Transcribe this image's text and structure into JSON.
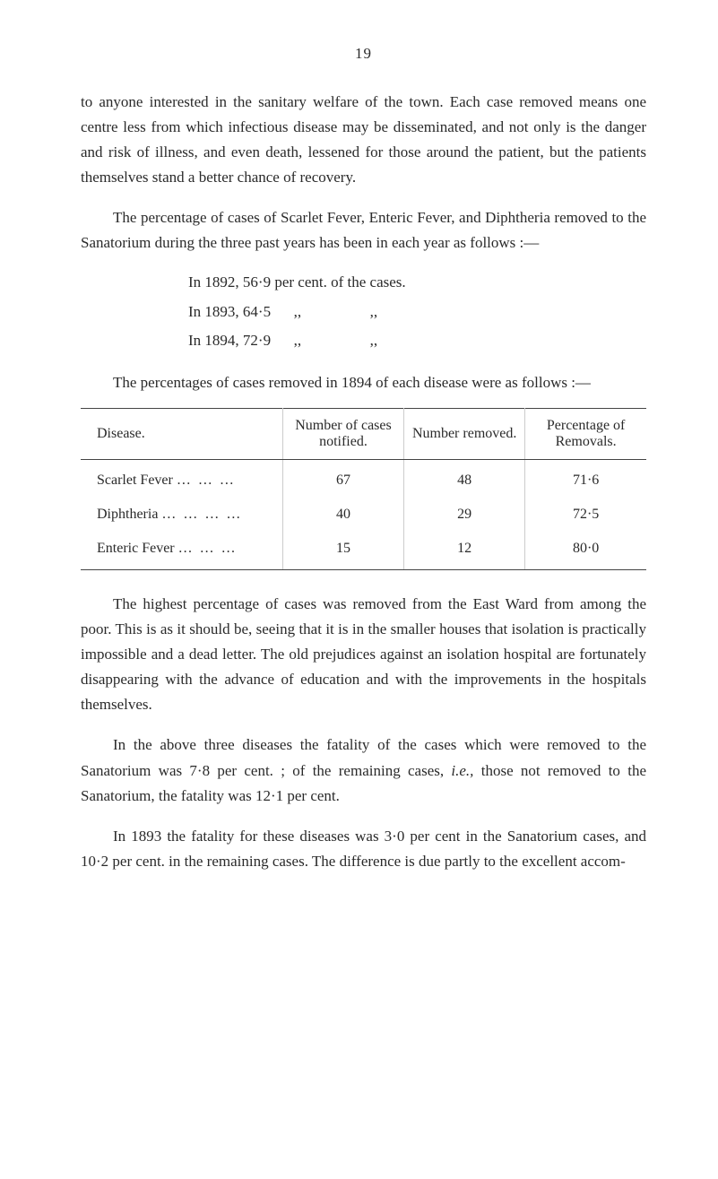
{
  "page_number": "19",
  "paragraphs": {
    "p1": "to anyone interested in the sanitary welfare of the town. Each case removed means one centre less from which infectious disease may be disseminated, and not only is the danger and risk of illness, and even death, lessened for those around the patient, but the patients themselves stand a better chance of recovery.",
    "p2": "The percentage of cases of Scarlet Fever, Enteric Fever, and Diphtheria removed to the Sanatorium during the three past years has been in each year as follows :—",
    "p3": "The percentages of cases removed in 1894 of each disease were as follows :—",
    "p4": "The highest percentage of cases was removed from the East Ward from among the poor. This is as it should be, seeing that it is in the smaller houses that isolation is prac­tically impossible and a dead letter. The old prejudices against an isolation hospital are fortunately disappearing with the advance of education and with the improvements in the hospitals themselves.",
    "p5_a": "In the above three diseases the fatality of the cases which were removed to the Sanatorium was 7·8 per cent. ; of the remaining cases, ",
    "p5_i": "i.e.,",
    "p5_b": " those not removed to the Sanatorium, the fatality was 12·1 per cent.",
    "p6": "In 1893 the fatality for these diseases was 3·0 per cent in the Sanatorium cases, and 10·2 per cent. in the remaining cases. The difference is due partly to the excellent accom-"
  },
  "year_list": {
    "y1": "In 1892, 56·9 per cent. of the cases.",
    "y2": "In 1893, 64·5      ,,                  ,,",
    "y3": "In 1894, 72·9      ,,                  ,,"
  },
  "table": {
    "columns": {
      "c1": "Disease.",
      "c2": "Number of cases notified.",
      "c3": "Number removed.",
      "c4": "Percentage of Removals."
    },
    "rows": [
      {
        "disease": "Scarlet Fever",
        "dots": "…  …  …",
        "notified": "67",
        "removed": "48",
        "pct": "71·6"
      },
      {
        "disease": "Diphtheria",
        "dots": "…  …  …  …",
        "notified": "40",
        "removed": "29",
        "pct": "72·5"
      },
      {
        "disease": "Enteric Fever",
        "dots": "…  …  …",
        "notified": "15",
        "removed": "12",
        "pct": "80·0"
      }
    ]
  },
  "style": {
    "background_color": "#ffffff",
    "text_color": "#2a2a2a",
    "body_fontsize": 17,
    "line_height": 1.65,
    "table_border_color": "#444444",
    "table_cell_divider_color": "#cccccc"
  }
}
